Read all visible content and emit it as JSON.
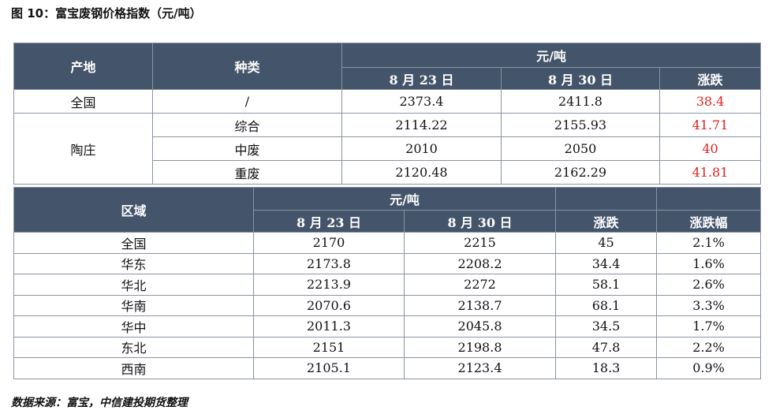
{
  "title": "图 10：富宝废钢价格指数（元/吨）",
  "source": "数据来源：富宝，中信建投期货整理",
  "table1": {
    "headers": {
      "origin": "产地",
      "type": "种类",
      "unit": "元/吨",
      "date1": "8 月 23 日",
      "date2": "8 月 30 日",
      "change": "涨跌"
    },
    "rows": [
      {
        "origin": "全国",
        "type": "/",
        "v1": "2373.4",
        "v2": "2411.8",
        "chg": "38.4"
      },
      {
        "origin": "陶庄",
        "type": "综合",
        "v1": "2114.22",
        "v2": "2155.93",
        "chg": "41.71"
      },
      {
        "type": "中废",
        "v1": "2010",
        "v2": "2050",
        "chg": "40"
      },
      {
        "type": "重废",
        "v1": "2120.48",
        "v2": "2162.29",
        "chg": "41.81"
      }
    ]
  },
  "table2": {
    "headers": {
      "region": "区域",
      "unit": "元/吨",
      "date1": "8 月 23 日",
      "date2": "8 月 30 日",
      "change": "涨跌",
      "pct": "涨跌幅"
    },
    "rows": [
      {
        "region": "全国",
        "v1": "2170",
        "v2": "2215",
        "chg": "45",
        "pct": "2.1%"
      },
      {
        "region": "华东",
        "v1": "2173.8",
        "v2": "2208.2",
        "chg": "34.4",
        "pct": "1.6%"
      },
      {
        "region": "华北",
        "v1": "2213.9",
        "v2": "2272",
        "chg": "58.1",
        "pct": "2.6%"
      },
      {
        "region": "华南",
        "v1": "2070.6",
        "v2": "2138.7",
        "chg": "68.1",
        "pct": "3.3%"
      },
      {
        "region": "华中",
        "v1": "2011.3",
        "v2": "2045.8",
        "chg": "34.5",
        "pct": "1.7%"
      },
      {
        "region": "东北",
        "v1": "2151",
        "v2": "2198.8",
        "chg": "47.8",
        "pct": "2.2%"
      },
      {
        "region": "西南",
        "v1": "2105.1",
        "v2": "2123.4",
        "chg": "18.3",
        "pct": "0.9%"
      }
    ]
  },
  "colors": {
    "header_bg": "#44546a",
    "header_text": "#ffffff",
    "positive": "#e0201c"
  }
}
